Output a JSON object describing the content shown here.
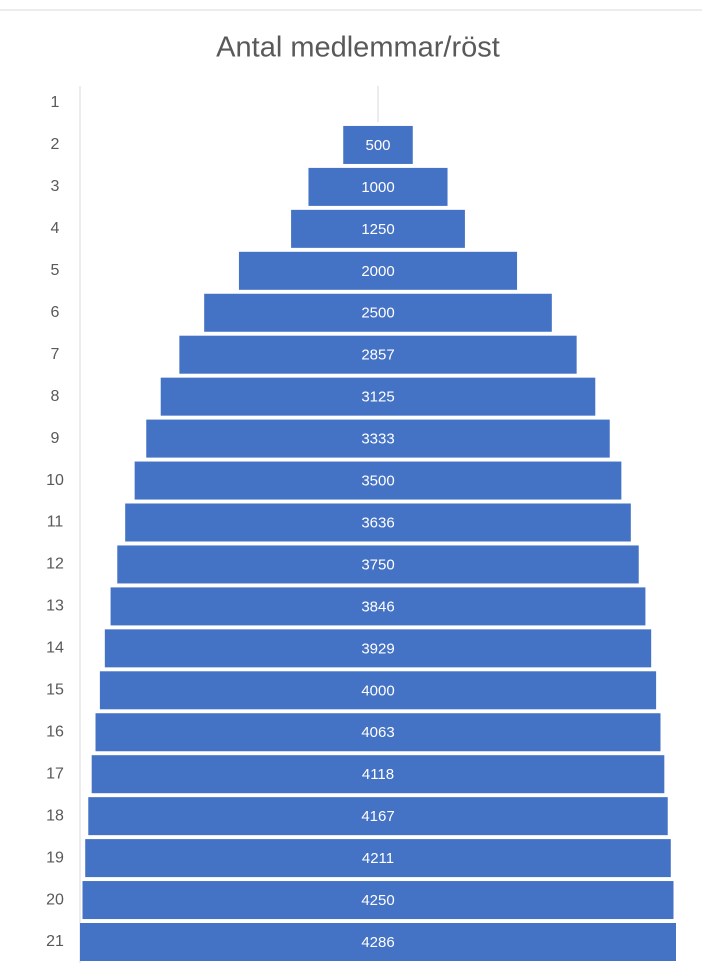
{
  "chart_data": {
    "type": "funnel",
    "title": "Antal medlemmar/röst",
    "categories": [
      "1",
      "2",
      "3",
      "4",
      "5",
      "6",
      "7",
      "8",
      "9",
      "10",
      "11",
      "12",
      "13",
      "14",
      "15",
      "16",
      "17",
      "18",
      "19",
      "20",
      "21"
    ],
    "values": [
      null,
      500,
      1000,
      1250,
      2000,
      2500,
      2857,
      3125,
      3333,
      3500,
      3636,
      3750,
      3846,
      3929,
      4000,
      4063,
      4118,
      4167,
      4211,
      4250,
      4286
    ],
    "color": "#4472c4"
  }
}
